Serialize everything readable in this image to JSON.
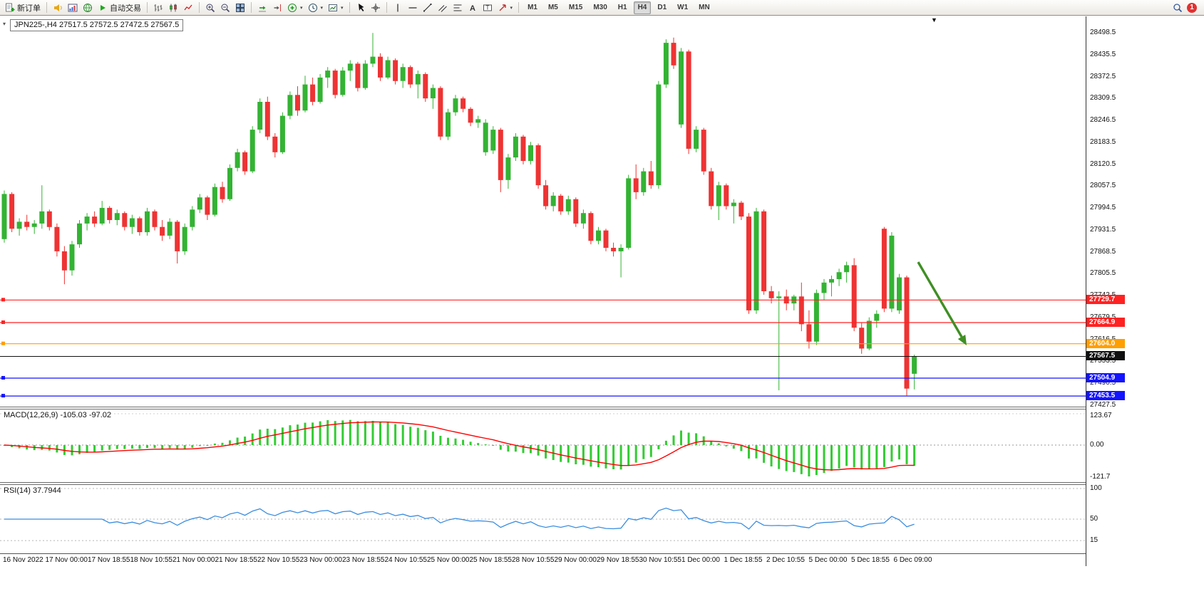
{
  "toolbar": {
    "new_order_label": "新订单",
    "autotrade_label": "自动交易",
    "timeframes": {
      "items": [
        "M1",
        "M5",
        "M15",
        "M30",
        "H1",
        "H4",
        "D1",
        "W1",
        "MN"
      ],
      "active": "H4"
    },
    "notification_count": "1"
  },
  "chart": {
    "title": "JPN225-,H4 27517.5 27572.5 27472.5 27567.5",
    "symbol_period": "JPN225-,H4",
    "open": "27517.5",
    "high": "27572.5",
    "low": "27472.5",
    "close": "27567.5",
    "price_axis": [
      "28498.5",
      "28435.5",
      "28372.5",
      "28309.5",
      "28246.5",
      "28183.5",
      "28120.5",
      "28057.5",
      "27994.5",
      "27931.5",
      "27868.5",
      "27805.5",
      "27742.5",
      "27679.5",
      "27616.5",
      "27553.5",
      "27490.5",
      "27427.5"
    ],
    "time_axis": [
      "16 Nov 2022",
      "17 Nov 00:00",
      "17 Nov 18:55",
      "18 Nov 10:55",
      "21 Nov 00:00",
      "21 Nov 18:55",
      "22 Nov 10:55",
      "23 Nov 00:00",
      "23 Nov 18:55",
      "24 Nov 10:55",
      "25 Nov 00:00",
      "25 Nov 18:55",
      "28 Nov 10:55",
      "29 Nov 00:00",
      "29 Nov 18:55",
      "30 Nov 10:55",
      "1 Dec 00:00",
      "1 Dec 18:55",
      "2 Dec 10:55",
      "5 Dec 00:00",
      "5 Dec 18:55",
      "6 Dec 09:00"
    ],
    "hlines": [
      {
        "price": 27729.7,
        "label": "27729.7",
        "color": "#ff2222"
      },
      {
        "price": 27664.9,
        "label": "27664.9",
        "color": "#ff2222"
      },
      {
        "price": 27604.0,
        "label": "27604.0",
        "color": "#ff9f00"
      },
      {
        "price": 27504.9,
        "label": "27504.9",
        "color": "#1414ff"
      },
      {
        "price": 27453.5,
        "label": "27453.5",
        "color": "#1414ff"
      }
    ],
    "current_price": {
      "price": 27567.5,
      "label": "27567.5",
      "color": "#101010"
    }
  },
  "macd_panel": {
    "label": "MACD(12,26,9)",
    "values": "-105.03 -97.02",
    "axis": [
      "123.67",
      "0.00",
      "-121.7"
    ]
  },
  "rsi_panel": {
    "label": "RSI(14)",
    "value": "37.7944",
    "axis": [
      "100",
      "50",
      "15"
    ]
  },
  "chart_data": {
    "type": "candlestick",
    "symbol": "JPN225-",
    "timeframe": "H4",
    "ohlc_current": {
      "open": 27517.5,
      "high": 27572.5,
      "low": 27472.5,
      "close": 27567.5
    },
    "price_range": [
      27427.5,
      28498.5
    ],
    "candles": [
      [
        27905,
        28045,
        27895,
        28035
      ],
      [
        28035,
        28040,
        27925,
        27935
      ],
      [
        27935,
        27965,
        27915,
        27955
      ],
      [
        27955,
        27975,
        27930,
        27940
      ],
      [
        27940,
        27960,
        27920,
        27950
      ],
      [
        27950,
        28060,
        27935,
        27985
      ],
      [
        27985,
        27990,
        27930,
        27940
      ],
      [
        27940,
        27950,
        27855,
        27870
      ],
      [
        27870,
        27885,
        27775,
        27815
      ],
      [
        27815,
        27900,
        27800,
        27890
      ],
      [
        27890,
        27960,
        27880,
        27950
      ],
      [
        27950,
        27980,
        27930,
        27970
      ],
      [
        27970,
        27985,
        27940,
        27950
      ],
      [
        27950,
        28015,
        27945,
        27995
      ],
      [
        27995,
        28000,
        27950,
        27960
      ],
      [
        27960,
        27990,
        27945,
        27980
      ],
      [
        27980,
        27985,
        27930,
        27940
      ],
      [
        27940,
        27975,
        27920,
        27965
      ],
      [
        27965,
        27970,
        27915,
        27925
      ],
      [
        27925,
        27995,
        27915,
        27985
      ],
      [
        27985,
        27990,
        27930,
        27940
      ],
      [
        27940,
        27960,
        27900,
        27915
      ],
      [
        27915,
        27965,
        27905,
        27955
      ],
      [
        27955,
        27960,
        27835,
        27870
      ],
      [
        27870,
        27950,
        27860,
        27940
      ],
      [
        27940,
        28000,
        27930,
        27990
      ],
      [
        27990,
        28035,
        27980,
        28025
      ],
      [
        28025,
        28030,
        27960,
        27975
      ],
      [
        27975,
        28065,
        27970,
        28055
      ],
      [
        28055,
        28070,
        28010,
        28020
      ],
      [
        28020,
        28120,
        28015,
        28110
      ],
      [
        28110,
        28165,
        28100,
        28155
      ],
      [
        28155,
        28160,
        28090,
        28100
      ],
      [
        28100,
        28230,
        28095,
        28220
      ],
      [
        28220,
        28310,
        28210,
        28300
      ],
      [
        28300,
        28315,
        28190,
        28200
      ],
      [
        28200,
        28210,
        28140,
        28155
      ],
      [
        28155,
        28270,
        28150,
        28260
      ],
      [
        28260,
        28330,
        28250,
        28320
      ],
      [
        28320,
        28345,
        28260,
        28275
      ],
      [
        28275,
        28375,
        28270,
        28350
      ],
      [
        28350,
        28370,
        28290,
        28300
      ],
      [
        28300,
        28380,
        28295,
        28370
      ],
      [
        28370,
        28400,
        28340,
        28390
      ],
      [
        28390,
        28395,
        28310,
        28320
      ],
      [
        28320,
        28400,
        28315,
        28390
      ],
      [
        28390,
        28420,
        28360,
        28410
      ],
      [
        28410,
        28415,
        28330,
        28340
      ],
      [
        28340,
        28420,
        28335,
        28410
      ],
      [
        28410,
        28498.5,
        28400,
        28430
      ],
      [
        28430,
        28440,
        28360,
        28370
      ],
      [
        28370,
        28430,
        28365,
        28420
      ],
      [
        28420,
        28425,
        28350,
        28360
      ],
      [
        28360,
        28410,
        28340,
        28400
      ],
      [
        28400,
        28405,
        28340,
        28350
      ],
      [
        28350,
        28390,
        28310,
        28380
      ],
      [
        28380,
        28385,
        28300,
        28310
      ],
      [
        28310,
        28350,
        28280,
        28340
      ],
      [
        28340,
        28345,
        28190,
        28200
      ],
      [
        28200,
        28280,
        28190,
        28270
      ],
      [
        28270,
        28320,
        28260,
        28310
      ],
      [
        28310,
        28315,
        28270,
        28280
      ],
      [
        28280,
        28285,
        28230,
        28240
      ],
      [
        28240,
        28260,
        28225,
        28250
      ],
      [
        28155,
        28250,
        28145,
        28240
      ],
      [
        28160,
        28230,
        28150,
        28220
      ],
      [
        28220,
        28225,
        28040,
        28075
      ],
      [
        28075,
        28150,
        28050,
        28140
      ],
      [
        28140,
        28210,
        28130,
        28200
      ],
      [
        28200,
        28205,
        28120,
        28130
      ],
      [
        28130,
        28185,
        28120,
        28175
      ],
      [
        28175,
        28180,
        28050,
        28060
      ],
      [
        28060,
        28075,
        27990,
        28000
      ],
      [
        28000,
        28040,
        27985,
        28030
      ],
      [
        28030,
        28035,
        27975,
        27985
      ],
      [
        27985,
        28030,
        27975,
        28020
      ],
      [
        28020,
        28025,
        27940,
        27950
      ],
      [
        27950,
        27990,
        27935,
        27980
      ],
      [
        27980,
        27985,
        27890,
        27900
      ],
      [
        27900,
        27940,
        27890,
        27930
      ],
      [
        27930,
        27935,
        27870,
        27880
      ],
      [
        27880,
        27895,
        27855,
        27870
      ],
      [
        27870,
        27890,
        27795,
        27880
      ],
      [
        27880,
        28090,
        27875,
        28080
      ],
      [
        28080,
        28120,
        28020,
        28040
      ],
      [
        28040,
        28110,
        28030,
        28100
      ],
      [
        28100,
        28130,
        28050,
        28060
      ],
      [
        28060,
        28360,
        28050,
        28350
      ],
      [
        28350,
        28480,
        28340,
        28470
      ],
      [
        28470,
        28485,
        28395,
        28405
      ],
      [
        28235,
        28455,
        28225,
        28445
      ],
      [
        28445,
        28450,
        28150,
        28165
      ],
      [
        28165,
        28230,
        28155,
        28220
      ],
      [
        28220,
        28225,
        28090,
        28100
      ],
      [
        28100,
        28110,
        27990,
        28000
      ],
      [
        28000,
        28070,
        27960,
        28060
      ],
      [
        28060,
        28065,
        27990,
        28000
      ],
      [
        28000,
        28020,
        27950,
        28010
      ],
      [
        28010,
        28015,
        27960,
        27970
      ],
      [
        27970,
        27980,
        27690,
        27700
      ],
      [
        27700,
        27995,
        27690,
        27985
      ],
      [
        27985,
        27990,
        27745,
        27755
      ],
      [
        27755,
        27770,
        27720,
        27735
      ],
      [
        27735,
        27755,
        27470,
        27740
      ],
      [
        27740,
        27760,
        27700,
        27720
      ],
      [
        27720,
        27745,
        27700,
        27740
      ],
      [
        27740,
        27780,
        27640,
        27660
      ],
      [
        27660,
        27700,
        27590,
        27610
      ],
      [
        27610,
        27760,
        27600,
        27750
      ],
      [
        27750,
        27790,
        27730,
        27780
      ],
      [
        27780,
        27800,
        27740,
        27790
      ],
      [
        27790,
        27820,
        27770,
        27810
      ],
      [
        27810,
        27840,
        27780,
        27830
      ],
      [
        27830,
        27850,
        27640,
        27650
      ],
      [
        27650,
        27665,
        27575,
        27590
      ],
      [
        27590,
        27680,
        27585,
        27670
      ],
      [
        27670,
        27700,
        27650,
        27690
      ],
      [
        27935,
        27940,
        27695,
        27705
      ],
      [
        27705,
        27925,
        27695,
        27915
      ],
      [
        27700,
        27805,
        27690,
        27795
      ],
      [
        27795,
        27800,
        27455,
        27475
      ],
      [
        27517.5,
        27572.5,
        27472.5,
        27567.5
      ]
    ],
    "indicators": {
      "macd": {
        "type": "macd",
        "params": [
          12,
          26,
          9
        ],
        "current": [
          -105.03,
          -97.02
        ]
      },
      "rsi": {
        "type": "rsi",
        "period": 14,
        "current": 37.7944
      }
    },
    "colors": {
      "up": "#33b333",
      "down": "#ee3333",
      "macd_hist": "#33cc33",
      "macd_signal": "#ff0000",
      "rsi_line": "#3b8de0",
      "arrow": "#3f8f24"
    }
  }
}
